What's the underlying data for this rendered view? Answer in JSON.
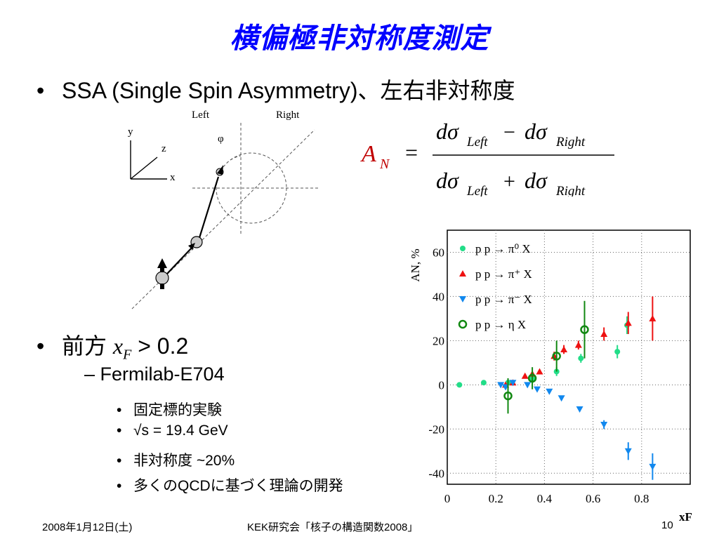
{
  "slide": {
    "title": "横偏極非対称度測定",
    "bullet1": "SSA (Single Spin Asymmetry)、左右非対称度",
    "bullet2_prefix": "前方 ",
    "bullet2_var": "x",
    "bullet2_subscript": "F",
    "bullet2_suffix": " > 0.2",
    "sub_item": "– Fermilab-E704",
    "sub_sub_items": [
      "固定標的実験",
      "√s = 19.4 GeV",
      "非対称度 ~20%",
      "多くのQCDに基づく理論の開発"
    ]
  },
  "diagram": {
    "left_label": "Left",
    "right_label": "Right",
    "phi_label": "φ",
    "axis_y": "y",
    "axis_z": "z",
    "axis_x": "x"
  },
  "formula": {
    "lhs": "A",
    "lhs_sub": "N",
    "num_left": "dσ",
    "left_sub": "Left",
    "minus": "−",
    "num_right": "dσ",
    "right_sub": "Right",
    "plus": "+"
  },
  "footer": {
    "date": "2008年1月12日(土)",
    "event": "KEK研究会「核子の構造関数2008」",
    "page": "10"
  },
  "chart_data": {
    "type": "scatter",
    "ylabel": "A_N, %",
    "xlabel": "x_F",
    "xlim": [
      0,
      1.0
    ],
    "ylim": [
      -45,
      70
    ],
    "xticks": [
      "0",
      "0.2",
      "0.4",
      "0.6",
      "0.8"
    ],
    "yticks": [
      "-40",
      "-20",
      "0",
      "20",
      "40",
      "60"
    ],
    "grid": true,
    "legend_position": "top-left",
    "series": [
      {
        "name": "p p → π⁰ X",
        "color": "#22dd88",
        "marker": "circle",
        "points": [
          [
            0.05,
            0
          ],
          [
            0.15,
            1
          ],
          [
            0.25,
            1
          ],
          [
            0.35,
            3
          ],
          [
            0.45,
            6
          ],
          [
            0.55,
            12
          ],
          [
            0.7,
            15
          ],
          [
            0.74,
            27
          ]
        ],
        "err": [
          1,
          1,
          1,
          2,
          2,
          2,
          3,
          4
        ]
      },
      {
        "name": "p p → π⁺ X",
        "color": "#ee1111",
        "marker": "triangle-up",
        "points": [
          [
            0.24,
            0
          ],
          [
            0.27,
            1
          ],
          [
            0.32,
            4
          ],
          [
            0.35,
            5
          ],
          [
            0.38,
            6
          ],
          [
            0.44,
            13
          ],
          [
            0.48,
            16
          ],
          [
            0.54,
            18
          ],
          [
            0.645,
            23
          ],
          [
            0.745,
            28
          ],
          [
            0.845,
            30
          ]
        ],
        "err": [
          1,
          1,
          1,
          1,
          1,
          2,
          2,
          2,
          3,
          5,
          10
        ]
      },
      {
        "name": "p p → π⁻ X",
        "color": "#1188ee",
        "marker": "triangle-down",
        "points": [
          [
            0.22,
            0
          ],
          [
            0.24,
            -1
          ],
          [
            0.27,
            1
          ],
          [
            0.33,
            0
          ],
          [
            0.37,
            -2
          ],
          [
            0.42,
            -3
          ],
          [
            0.47,
            -6
          ],
          [
            0.545,
            -11
          ],
          [
            0.645,
            -18
          ],
          [
            0.745,
            -30
          ],
          [
            0.845,
            -37
          ]
        ],
        "err": [
          1,
          1,
          1,
          1,
          1,
          1,
          1,
          1,
          2,
          4,
          6
        ]
      },
      {
        "name": "p p → η X",
        "color": "#118811",
        "marker": "open-circle",
        "points": [
          [
            0.25,
            -5
          ],
          [
            0.35,
            3
          ],
          [
            0.45,
            13
          ],
          [
            0.565,
            25
          ]
        ],
        "err": [
          8,
          5,
          7,
          13
        ]
      }
    ]
  }
}
